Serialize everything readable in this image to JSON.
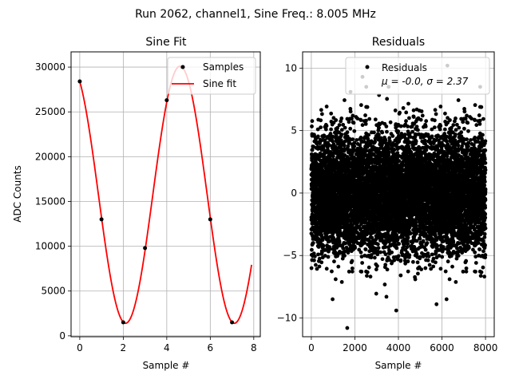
{
  "figure": {
    "suptitle": "Run 2062, channel1, Sine Freq.: 8.005 MHz"
  },
  "colors": {
    "fit": "#ff0000",
    "points": "#000000",
    "grid": "#b0b0b0"
  },
  "chart_data": [
    {
      "type": "scatter",
      "title": "Sine Fit",
      "xlabel": "Sample #",
      "ylabel": "ADC Counts",
      "xlim": [
        -0.4,
        8.3
      ],
      "ylim": [
        -100,
        31700
      ],
      "xticks": [
        0,
        2,
        4,
        6,
        8
      ],
      "yticks": [
        0,
        5000,
        10000,
        15000,
        20000,
        25000,
        30000
      ],
      "grid": true,
      "legend": {
        "placement": "top-right",
        "entries": [
          "Samples",
          "Sine fit"
        ]
      },
      "series": [
        {
          "name": "Samples",
          "kind": "scatter",
          "x": [
            0,
            1,
            2,
            3,
            4,
            4.7,
            6,
            7
          ],
          "y": [
            28400,
            13000,
            1500,
            9800,
            26300,
            30000,
            13000,
            1500
          ]
        },
        {
          "name": "Sine fit",
          "kind": "line",
          "model": {
            "offset": 15750,
            "amplitude": 14350,
            "period": 5.0,
            "phase_offset_samples": -0.86
          },
          "x_range": [
            0,
            7.9
          ]
        }
      ]
    },
    {
      "type": "scatter",
      "title": "Residuals",
      "xlabel": "Sample #",
      "ylabel": "",
      "xlim": [
        -400,
        8400
      ],
      "ylim": [
        -11.5,
        11.3
      ],
      "xticks": [
        0,
        2000,
        4000,
        6000,
        8000
      ],
      "yticks": [
        -10,
        -5,
        0,
        5,
        10
      ],
      "grid": true,
      "legend": {
        "placement": "top-right",
        "entries": [
          "Residuals",
          "μ = -0.0, σ = 2.37"
        ]
      },
      "series": [
        {
          "name": "Residuals",
          "kind": "scatter",
          "stats": {
            "mean": -0.0,
            "sigma": 2.37,
            "count": 8000
          },
          "outliers": {
            "x": [
              1650,
              2350,
              6250,
              3900,
              5750,
              1800,
              3450
            ],
            "y": [
              -10.8,
              9.3,
              10.2,
              -9.4,
              -8.9,
              8.1,
              -8.3
            ]
          }
        }
      ]
    }
  ]
}
